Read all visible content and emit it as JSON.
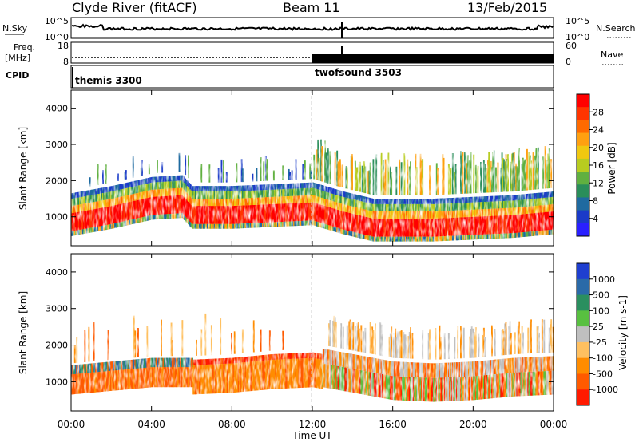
{
  "header": {
    "station": "Clyde River (fitACF)",
    "beam": "Beam 11",
    "date": "13/Feb/2015"
  },
  "strip_nsky": {
    "label": "N.Sky",
    "tick_top": "10^5",
    "tick_bottom": "10^0",
    "right_label": "N.Search",
    "right_tick_top": "10^5",
    "right_tick_bottom": "10^0"
  },
  "strip_freq": {
    "label_line1": "Freq.",
    "label_line2": "[MHz]",
    "tick_top": "18",
    "tick_bottom": "8",
    "right_label": "Nave",
    "right_tick_top": "60",
    "right_tick_bottom": "0"
  },
  "cpid": {
    "label": "CPID",
    "programs": [
      {
        "name": "themis 3300",
        "start_hour": 0
      },
      {
        "name": "twofsound 3503",
        "start_hour": 12
      }
    ]
  },
  "chart_data": [
    {
      "type": "heatmap",
      "panel": "power",
      "ylabel": "Slant Range [km]",
      "xlabel": "",
      "x_range_hours": [
        0,
        24
      ],
      "ylim": [
        200,
        4500
      ],
      "yticks": [
        1000,
        2000,
        3000,
        4000
      ],
      "colorbar_label": "Power [dB]",
      "colorbar_ticks": [
        "28",
        "24",
        "20",
        "16",
        "12",
        "8",
        "4"
      ],
      "colorbar_colors": [
        "#ff0000",
        "#ff3500",
        "#ff6a00",
        "#ffa010",
        "#f0c810",
        "#b8cc20",
        "#60b040",
        "#2a8e5a",
        "#1f6aa0",
        "#1a3ac8",
        "#2a20ff"
      ],
      "band_center_km": [
        [
          0.0,
          850
        ],
        [
          2.0,
          1050
        ],
        [
          4.0,
          1300
        ],
        [
          5.5,
          1350
        ],
        [
          6.0,
          1050
        ],
        [
          8.0,
          1050
        ],
        [
          10.0,
          1100
        ],
        [
          12.0,
          1150
        ],
        [
          13.5,
          900
        ],
        [
          15.0,
          700
        ],
        [
          18.0,
          700
        ],
        [
          20.0,
          750
        ],
        [
          22.0,
          800
        ],
        [
          24.0,
          900
        ]
      ]
    },
    {
      "type": "heatmap",
      "panel": "velocity",
      "ylabel": "Slant Range [km]",
      "xlabel": "Time UT",
      "x_range_hours": [
        0,
        24
      ],
      "ylim": [
        200,
        4500
      ],
      "yticks": [
        1000,
        2000,
        3000,
        4000
      ],
      "xticks": [
        "00:00",
        "04:00",
        "08:00",
        "12:00",
        "16:00",
        "20:00",
        "00:00"
      ],
      "colorbar_label": "Velocity [m s-1]",
      "colorbar_ticks": [
        "1000",
        "500",
        "100",
        "25",
        "-25",
        "-100",
        "-500",
        "-1000"
      ],
      "colorbar_colors": [
        "#1f3fd0",
        "#2a6aa8",
        "#2a8f5f",
        "#58c040",
        "#bfbfbf",
        "#ffc060",
        "#ff8c00",
        "#ff5a00",
        "#ff1a00"
      ],
      "band_center_km": [
        [
          0.0,
          900
        ],
        [
          2.0,
          1000
        ],
        [
          4.0,
          1100
        ],
        [
          6.0,
          1100
        ],
        [
          8.0,
          1150
        ],
        [
          10.0,
          1250
        ],
        [
          12.0,
          1300
        ],
        [
          14.0,
          1100
        ],
        [
          16.0,
          900
        ],
        [
          18.0,
          850
        ],
        [
          20.0,
          900
        ],
        [
          22.0,
          1000
        ],
        [
          24.0,
          1050
        ]
      ]
    }
  ]
}
